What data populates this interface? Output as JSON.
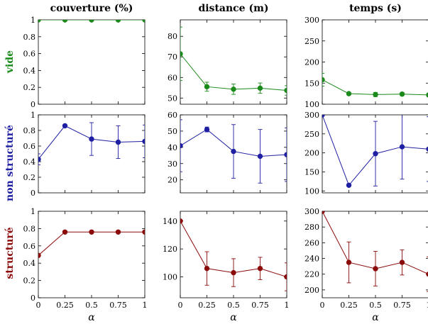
{
  "figure": {
    "column_titles": [
      "couverture (%)",
      "distance (m)",
      "temps (s)"
    ],
    "row_labels": [
      "vide",
      "non structuré",
      "structuré"
    ],
    "xlabel": "α"
  },
  "colors": {
    "vide": "#1a8a1a",
    "non structuré": "#1f1fa3",
    "structuré": "#8b0a0a",
    "axis": "#000000",
    "text": "#000000"
  },
  "chart_data": [
    {
      "type": "line",
      "row": "vide",
      "column": "couverture (%)",
      "x": [
        0,
        0.25,
        0.5,
        0.75,
        1
      ],
      "values": [
        1,
        1,
        1,
        1,
        1
      ],
      "errors": [
        0,
        0,
        0,
        0,
        0
      ],
      "xlim": [
        0,
        1
      ],
      "ylim": [
        0,
        1
      ],
      "xticks": [
        "",
        "",
        "",
        "",
        ""
      ],
      "yticks": [
        "0",
        "0.2",
        "0.4",
        "0.6",
        "0.8",
        "1"
      ]
    },
    {
      "type": "line",
      "row": "vide",
      "column": "distance (m)",
      "x": [
        0,
        0.25,
        0.5,
        0.75,
        1
      ],
      "values": [
        71.5,
        55.5,
        54.3,
        54.8,
        53.7
      ],
      "errors": [
        13,
        2.2,
        2.5,
        2.5,
        2.3
      ],
      "xlim": [
        0,
        1
      ],
      "ylim": [
        47,
        88
      ],
      "xticks": [
        "",
        "",
        "",
        "",
        ""
      ],
      "yticks": [
        "50",
        "60",
        "70",
        "80"
      ]
    },
    {
      "type": "line",
      "row": "vide",
      "column": "temps (s)",
      "x": [
        0,
        0.25,
        0.5,
        0.75,
        1
      ],
      "values": [
        158,
        125,
        123,
        124,
        122
      ],
      "errors": [
        15,
        3,
        5,
        4,
        4
      ],
      "xlim": [
        0,
        1
      ],
      "ylim": [
        100,
        300
      ],
      "xticks": [
        "",
        "",
        "",
        "",
        ""
      ],
      "yticks": [
        "100",
        "150",
        "200",
        "250",
        "300"
      ]
    },
    {
      "type": "line",
      "row": "non structuré",
      "column": "couverture (%)",
      "x": [
        0,
        0.25,
        0.5,
        0.75,
        1
      ],
      "values": [
        0.43,
        0.86,
        0.69,
        0.65,
        0.66
      ],
      "errors": [
        0.07,
        0,
        0.21,
        0.21,
        0.21
      ],
      "xlim": [
        0,
        1
      ],
      "ylim": [
        0,
        1
      ],
      "xticks": [
        "",
        "",
        "",
        "",
        ""
      ],
      "yticks": [
        "0",
        "0.2",
        "0.4",
        "0.6",
        "0.8",
        "1"
      ]
    },
    {
      "type": "line",
      "row": "non structuré",
      "column": "distance (m)",
      "x": [
        0,
        0.25,
        0.5,
        0.75,
        1
      ],
      "values": [
        41,
        51,
        37.5,
        34.5,
        35.5
      ],
      "errors": [
        16,
        1.5,
        16.5,
        16.5,
        16.5
      ],
      "xlim": [
        0,
        1
      ],
      "ylim": [
        12,
        60
      ],
      "xticks": [
        "",
        "",
        "",
        "",
        ""
      ],
      "yticks": [
        "20",
        "30",
        "40",
        "50",
        "60"
      ]
    },
    {
      "type": "line",
      "row": "non structuré",
      "column": "temps (s)",
      "x": [
        0,
        0.25,
        0.5,
        0.75,
        1
      ],
      "values": [
        300,
        115,
        198,
        216,
        210
      ],
      "errors": [
        0,
        0,
        85,
        85,
        85
      ],
      "xlim": [
        0,
        1
      ],
      "ylim": [
        95,
        300
      ],
      "xticks": [
        "",
        "",
        "",
        "",
        ""
      ],
      "yticks": [
        "100",
        "150",
        "200",
        "250",
        "300"
      ]
    },
    {
      "type": "line",
      "row": "structuré",
      "column": "couverture (%)",
      "x": [
        0,
        0.25,
        0.5,
        0.75,
        1
      ],
      "values": [
        0.49,
        0.76,
        0.76,
        0.76,
        0.76
      ],
      "errors": [
        0,
        0,
        0,
        0,
        0
      ],
      "xlim": [
        0,
        1
      ],
      "ylim": [
        0,
        1
      ],
      "xticks": [
        "0",
        "0.25",
        "0.5",
        "0.75",
        "1"
      ],
      "yticks": [
        "0",
        "0.2",
        "0.4",
        "0.6",
        "0.8",
        "1"
      ]
    },
    {
      "type": "line",
      "row": "structuré",
      "column": "distance (m)",
      "x": [
        0,
        0.25,
        0.5,
        0.75,
        1
      ],
      "values": [
        140,
        106,
        103,
        106,
        100
      ],
      "errors": [
        0,
        12,
        10,
        8,
        10
      ],
      "xlim": [
        0,
        1
      ],
      "ylim": [
        85,
        147
      ],
      "xticks": [
        "0",
        "0.25",
        "0.5",
        "0.75",
        "1"
      ],
      "yticks": [
        "100",
        "120",
        "140"
      ]
    },
    {
      "type": "line",
      "row": "structuré",
      "column": "temps (s)",
      "x": [
        0,
        0.25,
        0.5,
        0.75,
        1
      ],
      "values": [
        300,
        235,
        227,
        235,
        220
      ],
      "errors": [
        0,
        26,
        22,
        16,
        22
      ],
      "xlim": [
        0,
        1
      ],
      "ylim": [
        190,
        300
      ],
      "xticks": [
        "0",
        "0.25",
        "0.5",
        "0.75",
        "1"
      ],
      "yticks": [
        "200",
        "220",
        "240",
        "260",
        "280",
        "300"
      ]
    }
  ]
}
